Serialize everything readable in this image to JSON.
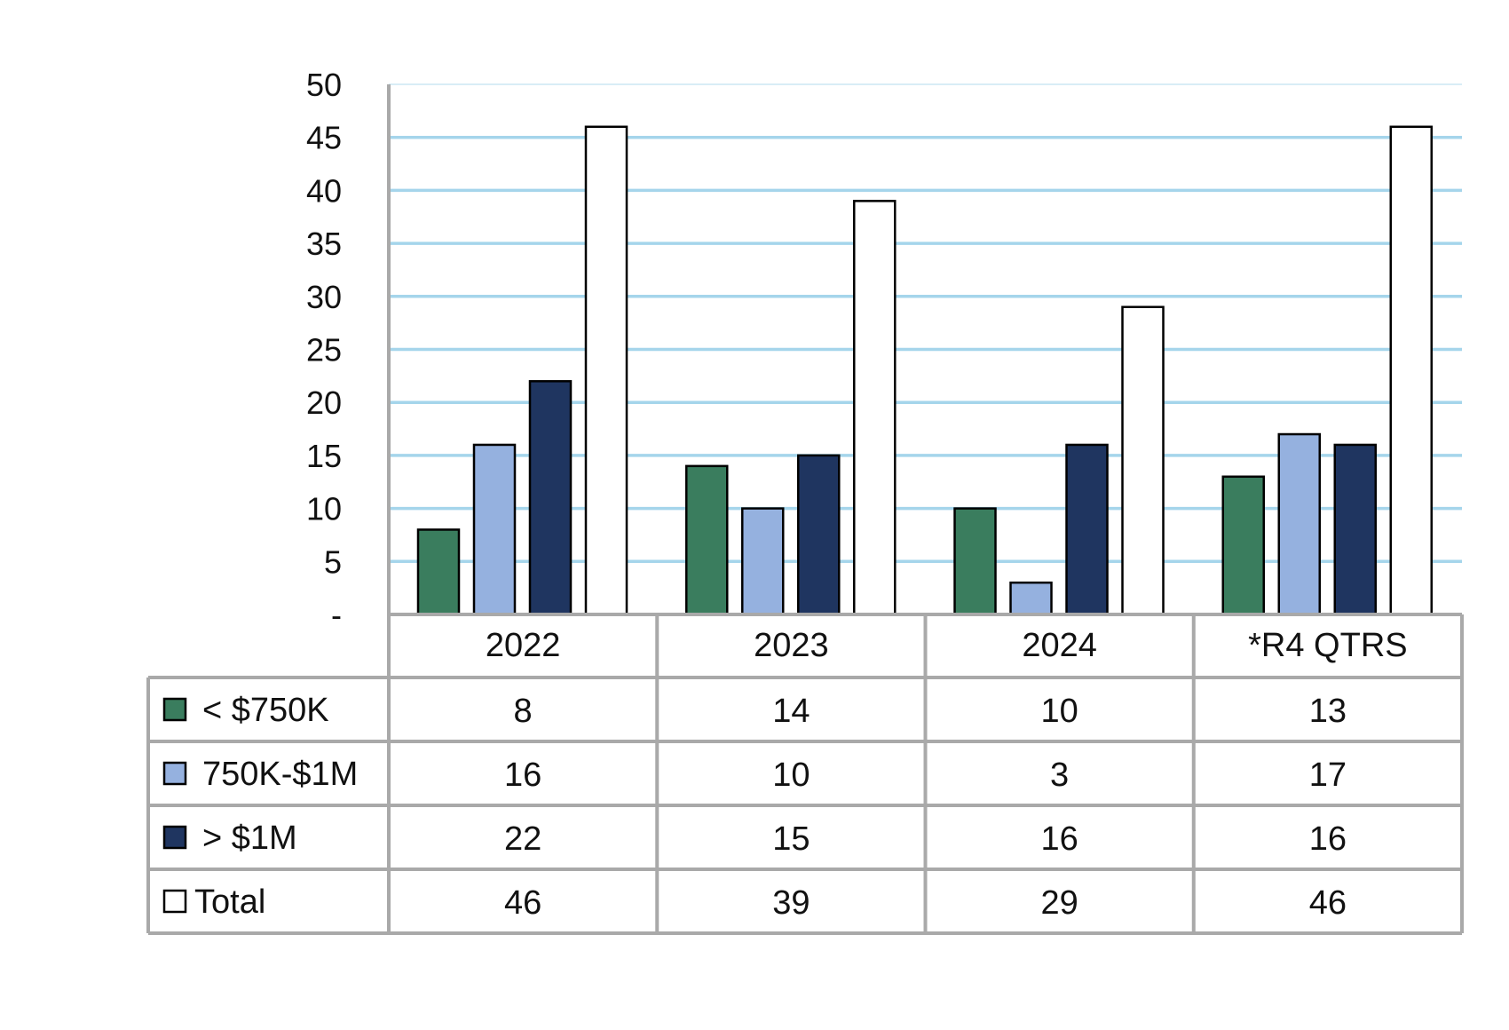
{
  "chart_data": {
    "type": "bar",
    "categories": [
      "2022",
      "2023",
      "2024",
      "*R4 QTRS"
    ],
    "series": [
      {
        "name": "< $750K",
        "values": [
          8,
          14,
          10,
          13
        ],
        "color": "#3a7d5e"
      },
      {
        "name": "750K-$1M",
        "values": [
          16,
          10,
          3,
          17
        ],
        "color": "#95b1df"
      },
      {
        "name": "> $1M",
        "values": [
          22,
          15,
          16,
          16
        ],
        "color": "#1f3560"
      },
      {
        "name": "Total",
        "values": [
          46,
          39,
          29,
          46
        ],
        "color": "#ffffff"
      }
    ],
    "y_ticks": [
      "-",
      "5",
      "10",
      "15",
      "20",
      "25",
      "30",
      "35",
      "40",
      "45",
      "50"
    ],
    "ylim": [
      0,
      50
    ],
    "grid": true,
    "gridline_color": "#8ecbe6",
    "legend": "data table below chart"
  }
}
